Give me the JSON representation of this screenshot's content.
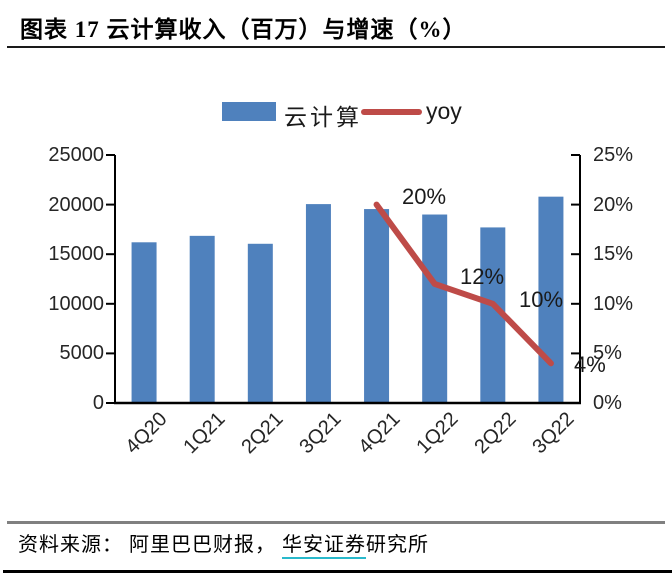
{
  "header": {
    "title": "图表 17 云计算收入（百万）与增速（%）"
  },
  "legend": [
    {
      "label": "云计算",
      "type": "bar",
      "color": "#4F81BD"
    },
    {
      "label": "yoy",
      "type": "line",
      "color": "#BE4B48"
    }
  ],
  "chart_data": {
    "type": "bar+line",
    "title": "云计算收入（百万）与增速（%）",
    "categories": [
      "4Q20",
      "1Q21",
      "2Q21",
      "3Q21",
      "4Q21",
      "1Q22",
      "2Q22",
      "3Q22"
    ],
    "series": [
      {
        "name": "云计算",
        "type": "bar",
        "axis": "left",
        "color": "#4F81BD",
        "values": [
          16200,
          16850,
          16050,
          20050,
          19550,
          19000,
          17700,
          20800
        ]
      },
      {
        "name": "yoy",
        "type": "line",
        "axis": "right",
        "color": "#BE4B48",
        "values": [
          null,
          null,
          null,
          null,
          20,
          12,
          10,
          4
        ]
      }
    ],
    "left_axis": {
      "min": 0,
      "max": 25000,
      "ticks": [
        "25000",
        "20000",
        "15000",
        "10000",
        "5000",
        "0"
      ]
    },
    "right_axis": {
      "min": 0,
      "max": 25,
      "ticks": [
        "25%",
        "20%",
        "15%",
        "10%",
        "5%",
        "0%"
      ]
    },
    "point_labels": [
      {
        "text": "20%",
        "category": "4Q21"
      },
      {
        "text": "12%",
        "category": "1Q22"
      },
      {
        "text": "10%",
        "category": "2Q22"
      },
      {
        "text": "4%",
        "category": "3Q22"
      }
    ],
    "grid": false,
    "legend_position": "top"
  },
  "footer": {
    "prefix": "资料来源： 阿里巴巴财报， ",
    "link": "华安证券",
    "suffix": "研究所"
  }
}
